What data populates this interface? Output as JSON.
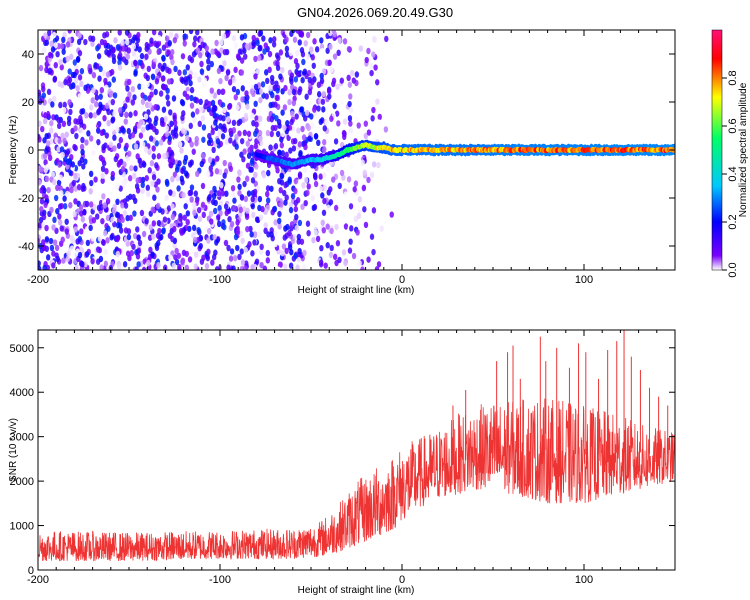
{
  "figure": {
    "title": "GN04.2026.069.20.49.G30"
  },
  "chart_data": [
    {
      "type": "heatmap",
      "title": "",
      "xlabel": "Height of straight line (km)",
      "ylabel": "Frequency (Hz)",
      "xlim": [
        -200,
        150
      ],
      "ylim": [
        -50,
        50
      ],
      "xticks": [
        -200,
        -100,
        0,
        100
      ],
      "xtick_labels": [
        "-200",
        "-100",
        "0",
        "100"
      ],
      "yticks": [
        -40,
        -20,
        0,
        20,
        40
      ],
      "ytick_labels": [
        "-40",
        "-20",
        "0",
        "20",
        "40"
      ],
      "colorbar": {
        "label": "Normalized spectral amplitude",
        "range": [
          0,
          1
        ],
        "ticks": [
          0,
          0.2,
          0.4,
          0.6,
          0.8
        ],
        "tick_labels": [
          "0.0",
          "0.2",
          "0.4",
          "0.6",
          "0.8"
        ],
        "colors": [
          "#ffffff",
          "#7a00ff",
          "#0000ff",
          "#00c8ff",
          "#00ff66",
          "#ffff00",
          "#ff0000",
          "#ff1177"
        ]
      },
      "noise_region": {
        "x": [
          -200,
          -20
        ],
        "amplitude": 0.2
      },
      "signal_trace": {
        "x": [
          -80,
          -75,
          -70,
          -65,
          -60,
          -55,
          -50,
          -45,
          -40,
          -35,
          -30,
          -25,
          -20,
          -15,
          -10,
          -5,
          0,
          20,
          40,
          60,
          80,
          100,
          120,
          150
        ],
        "freq": [
          -2,
          -3,
          -4,
          -5,
          -6,
          -5,
          -4,
          -4,
          -3,
          -2,
          0,
          1,
          2,
          1,
          1,
          0,
          0,
          0,
          0,
          0,
          0,
          0,
          0,
          0
        ],
        "amplitude": [
          0.2,
          0.25,
          0.28,
          0.3,
          0.32,
          0.35,
          0.35,
          0.38,
          0.42,
          0.5,
          0.6,
          0.65,
          0.7,
          0.72,
          0.75,
          0.78,
          0.8,
          0.82,
          0.82,
          0.85,
          0.85,
          0.85,
          0.86,
          0.86
        ]
      }
    },
    {
      "type": "line",
      "title": "",
      "xlabel": "Height of straight line (km)",
      "ylabel": "SNR (10 * v/v)",
      "xlim": [
        -200,
        150
      ],
      "ylim": [
        0,
        5400
      ],
      "xticks": [
        -200,
        -100,
        0,
        100
      ],
      "xtick_labels": [
        "-200",
        "-100",
        "0",
        "100"
      ],
      "yticks": [
        0,
        1000,
        2000,
        3000,
        4000,
        5000
      ],
      "ytick_labels": [
        "0",
        "1000",
        "2000",
        "3000",
        "4000",
        "5000"
      ],
      "color": "#ee3333",
      "envelope": {
        "x": [
          -200,
          -150,
          -100,
          -60,
          -45,
          -35,
          -25,
          -15,
          -5,
          0,
          10,
          20,
          30,
          40,
          50,
          60,
          70,
          80,
          90,
          100,
          110,
          120,
          130,
          140,
          150
        ],
        "low": [
          200,
          200,
          250,
          250,
          300,
          400,
          550,
          700,
          900,
          1100,
          1400,
          1600,
          1700,
          1800,
          1800,
          1700,
          1600,
          1500,
          1500,
          1500,
          1600,
          1700,
          1800,
          1900,
          2000
        ],
        "high": [
          900,
          850,
          900,
          950,
          1100,
          1500,
          2000,
          2300,
          2600,
          2800,
          3000,
          3200,
          3500,
          3700,
          3800,
          3800,
          3900,
          3900,
          3800,
          3700,
          3600,
          3500,
          3300,
          3200,
          3100
        ],
        "mean": [
          550,
          520,
          560,
          600,
          700,
          900,
          1200,
          1450,
          1700,
          1900,
          2100,
          2300,
          2500,
          2650,
          2750,
          2750,
          2750,
          2700,
          2650,
          2600,
          2600,
          2650,
          2650,
          2600,
          2600
        ]
      },
      "peaks": {
        "x": [
          28,
          35,
          52,
          58,
          61,
          65,
          76,
          79,
          85,
          92,
          97,
          101,
          108,
          113,
          118,
          122,
          126,
          131,
          136,
          141,
          146
        ],
        "y": [
          3700,
          4050,
          4700,
          4900,
          5050,
          4300,
          5250,
          4700,
          5000,
          4550,
          5100,
          4900,
          4300,
          4950,
          5150,
          5400,
          4800,
          4500,
          4100,
          3900,
          3700
        ]
      }
    }
  ]
}
